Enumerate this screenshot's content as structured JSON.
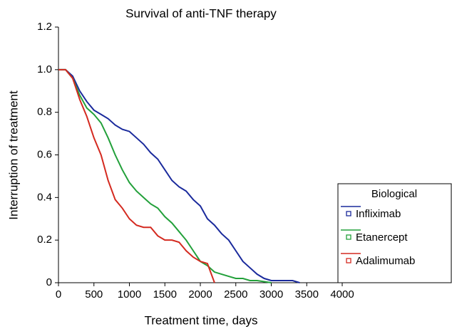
{
  "chart_data": {
    "type": "line",
    "title": "Survival of anti-TNF therapy",
    "x_label": "Treatment time, days",
    "y_label": "Interruption of treatment",
    "x": [
      0,
      100,
      200,
      300,
      400,
      500,
      600,
      700,
      800,
      900,
      1000,
      1100,
      1200,
      1300,
      1400,
      1500,
      1600,
      1700,
      1800,
      1900,
      2000,
      2100,
      2200,
      2300,
      2400,
      2500,
      2600,
      2700,
      2800,
      2900,
      3000,
      3100,
      3200,
      3300,
      3400
    ],
    "series": [
      {
        "name": "Infliximab",
        "color": "#1a2a9c",
        "values": [
          1,
          1,
          0.97,
          0.9,
          0.85,
          0.81,
          0.79,
          0.77,
          0.74,
          0.72,
          0.71,
          0.68,
          0.65,
          0.61,
          0.58,
          0.53,
          0.48,
          0.45,
          0.43,
          0.39,
          0.36,
          0.3,
          0.27,
          0.23,
          0.2,
          0.15,
          0.1,
          0.07,
          0.04,
          0.02,
          0.01,
          0.01,
          0.01,
          0.01,
          0
        ]
      },
      {
        "name": "Etanercept",
        "color": "#22a03a",
        "values": [
          1,
          1,
          0.96,
          0.88,
          0.82,
          0.79,
          0.75,
          0.68,
          0.6,
          0.53,
          0.47,
          0.43,
          0.4,
          0.37,
          0.35,
          0.31,
          0.28,
          0.24,
          0.2,
          0.15,
          0.1,
          0.08,
          0.05,
          0.04,
          0.03,
          0.02,
          0.02,
          0.01,
          0.01,
          0.005,
          0,
          null,
          null,
          null,
          null
        ]
      },
      {
        "name": "Adalimumab",
        "color": "#d42a20",
        "values": [
          1,
          1,
          0.96,
          0.86,
          0.78,
          0.68,
          0.6,
          0.48,
          0.39,
          0.35,
          0.3,
          0.27,
          0.26,
          0.26,
          0.22,
          0.2,
          0.2,
          0.19,
          0.15,
          0.12,
          0.1,
          0.09,
          0,
          null,
          null,
          null,
          null,
          null,
          null,
          null,
          null,
          null,
          null,
          null,
          null
        ]
      }
    ],
    "legend_title": "Biological",
    "legend": "right",
    "xlim": [
      0,
      4000
    ],
    "xticks": [
      0,
      500,
      1000,
      1500,
      2000,
      2500,
      3000,
      3500,
      4000
    ],
    "ylim": [
      0,
      1.2
    ],
    "yticks": [
      0,
      0.2,
      0.4,
      0.6,
      0.8,
      {
        "value": 1,
        "label": "1.0"
      },
      1.2
    ]
  }
}
